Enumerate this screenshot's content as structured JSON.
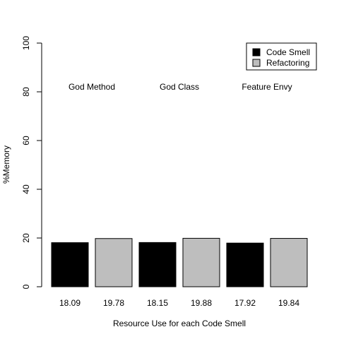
{
  "chart_data": {
    "type": "bar",
    "xlabel": "Resource Use for each Code Smell",
    "ylabel": "%Memory",
    "ylim": [
      0,
      100
    ],
    "yticks": [
      "0",
      "20",
      "40",
      "60",
      "80",
      "100"
    ],
    "grid": false,
    "legend_position": "top-right",
    "series": [
      {
        "name": "Code Smell",
        "color": "#000000"
      },
      {
        "name": "Refactoring",
        "color": "#bebebe"
      }
    ],
    "groups": [
      "God Method",
      "God Class",
      "Feature Envy"
    ],
    "bars": [
      {
        "series": 0,
        "value": 18.09,
        "label": "18.09"
      },
      {
        "series": 1,
        "value": 19.78,
        "label": "19.78"
      },
      {
        "series": 0,
        "value": 18.15,
        "label": "18.15"
      },
      {
        "series": 1,
        "value": 19.88,
        "label": "19.88"
      },
      {
        "series": 0,
        "value": 17.92,
        "label": "17.92"
      },
      {
        "series": 1,
        "value": 19.84,
        "label": "19.84"
      }
    ]
  }
}
